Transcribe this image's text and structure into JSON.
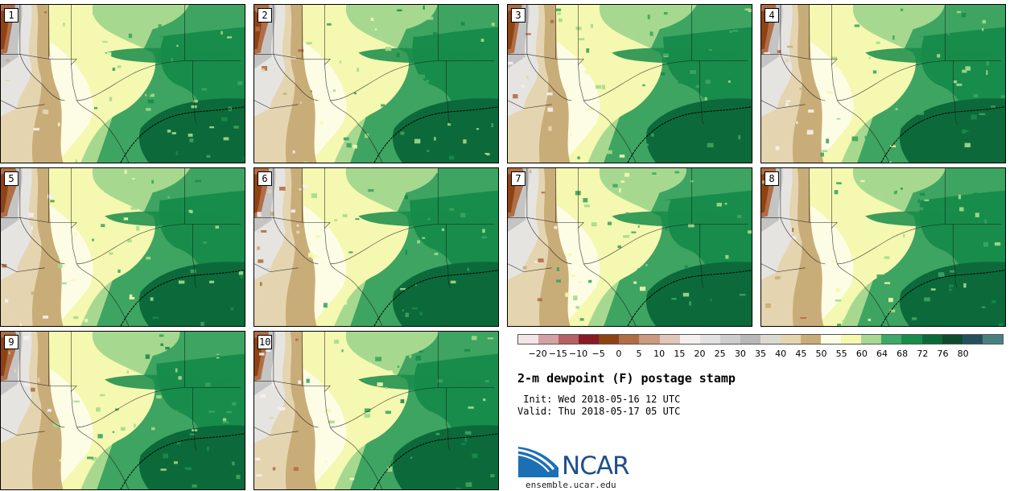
{
  "panels": [
    {
      "label": "1"
    },
    {
      "label": "2"
    },
    {
      "label": "3"
    },
    {
      "label": "4"
    },
    {
      "label": "5"
    },
    {
      "label": "6"
    },
    {
      "label": "7"
    },
    {
      "label": "8"
    },
    {
      "label": "9"
    },
    {
      "label": "10"
    }
  ],
  "colorbar": {
    "colors": [
      "#f3e4e6",
      "#d3a1a3",
      "#b56062",
      "#8a1a25",
      "#8f4313",
      "#b06e46",
      "#c99a80",
      "#e1c7b8",
      "#f5f0f0",
      "#e1e1e1",
      "#cdcdcd",
      "#b8b8b8",
      "#dcdad0",
      "#e4d5b0",
      "#c9ad78",
      "#fdfde6",
      "#f5f8b0",
      "#a6d98f",
      "#3fa868",
      "#188c4a",
      "#0c6a3a",
      "#0b4c2c",
      "#24505c",
      "#4a7f82"
    ],
    "labels": [
      "−20",
      "−15",
      "−10",
      "−5",
      "0",
      "5",
      "10",
      "15",
      "20",
      "25",
      "30",
      "35",
      "40",
      "45",
      "50",
      "55",
      "60",
      "64",
      "68",
      "72",
      "76",
      "80"
    ]
  },
  "title": "2-m dewpoint (F) postage stamp",
  "init": " Init: Wed 2018-05-16 12 UTC",
  "valid": "Valid: Thu 2018-05-17 05 UTC",
  "logo": {
    "text": "NCAR",
    "url": "ensemble.ucar.edu"
  }
}
